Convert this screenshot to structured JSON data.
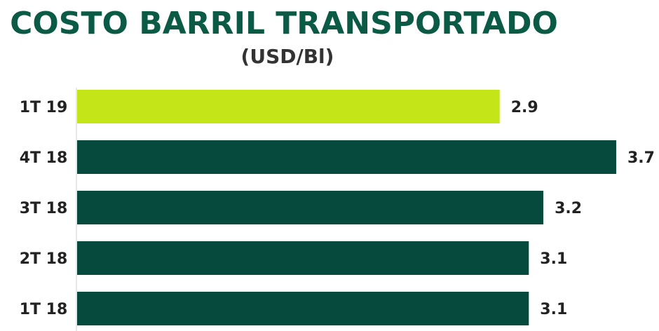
{
  "chart_data": {
    "type": "hbar",
    "title": "COSTO BARRIL TRANSPORTADO",
    "subtitle": "(USD/Bl)",
    "categories": [
      "1T 19",
      "4T 18",
      "3T 18",
      "2T 18",
      "1T 18"
    ],
    "values": [
      2.9,
      3.7,
      3.2,
      3.1,
      3.1
    ],
    "colors": [
      "#c4e619",
      "#054a3d",
      "#054a3d",
      "#054a3d",
      "#054a3d"
    ]
  }
}
